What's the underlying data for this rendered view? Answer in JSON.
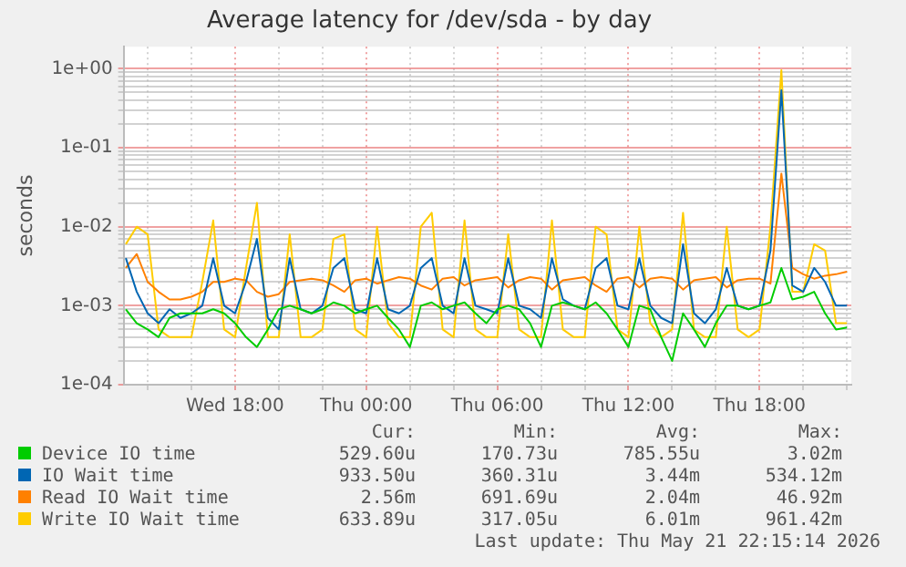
{
  "chart_data": {
    "type": "line",
    "title": "Average latency for /dev/sda - by day",
    "ylabel": "seconds",
    "x": [
      "2026-05-20T13:00",
      "2026-05-20T13:30",
      "2026-05-20T14:00",
      "2026-05-20T14:30",
      "2026-05-20T15:00",
      "2026-05-20T15:30",
      "2026-05-20T16:00",
      "2026-05-20T16:30",
      "2026-05-20T17:00",
      "2026-05-20T17:30",
      "2026-05-20T18:00",
      "2026-05-20T18:30",
      "2026-05-20T19:00",
      "2026-05-20T19:30",
      "2026-05-20T20:00",
      "2026-05-20T20:30",
      "2026-05-20T21:00",
      "2026-05-20T21:30",
      "2026-05-20T22:00",
      "2026-05-20T22:30",
      "2026-05-20T23:00",
      "2026-05-20T23:30",
      "2026-05-21T00:00",
      "2026-05-21T00:30",
      "2026-05-21T01:00",
      "2026-05-21T01:30",
      "2026-05-21T02:00",
      "2026-05-21T02:30",
      "2026-05-21T03:00",
      "2026-05-21T03:30",
      "2026-05-21T04:00",
      "2026-05-21T04:30",
      "2026-05-21T05:00",
      "2026-05-21T05:30",
      "2026-05-21T06:00",
      "2026-05-21T06:30",
      "2026-05-21T07:00",
      "2026-05-21T07:30",
      "2026-05-21T08:00",
      "2026-05-21T08:30",
      "2026-05-21T09:00",
      "2026-05-21T09:30",
      "2026-05-21T10:00",
      "2026-05-21T10:30",
      "2026-05-21T11:00",
      "2026-05-21T11:30",
      "2026-05-21T12:00",
      "2026-05-21T12:30",
      "2026-05-21T13:00",
      "2026-05-21T13:30",
      "2026-05-21T14:00",
      "2026-05-21T14:30",
      "2026-05-21T15:00",
      "2026-05-21T15:30",
      "2026-05-21T16:00",
      "2026-05-21T16:30",
      "2026-05-21T17:00",
      "2026-05-21T17:30",
      "2026-05-21T18:00",
      "2026-05-21T18:30",
      "2026-05-21T19:00",
      "2026-05-21T19:30",
      "2026-05-21T20:00",
      "2026-05-21T20:30",
      "2026-05-21T21:00",
      "2026-05-21T21:30",
      "2026-05-21T22:00"
    ],
    "xlim": [
      "2026-05-20T12:54",
      "2026-05-21T22:12"
    ],
    "xticks": [
      {
        "value": "2026-05-20T14:00",
        "label": null
      },
      {
        "value": "2026-05-20T16:00",
        "label": null
      },
      {
        "value": "2026-05-20T18:00",
        "label": "Wed 18:00"
      },
      {
        "value": "2026-05-20T20:00",
        "label": null
      },
      {
        "value": "2026-05-20T22:00",
        "label": null
      },
      {
        "value": "2026-05-21T00:00",
        "label": "Thu 00:00"
      },
      {
        "value": "2026-05-21T02:00",
        "label": null
      },
      {
        "value": "2026-05-21T04:00",
        "label": null
      },
      {
        "value": "2026-05-21T06:00",
        "label": "Thu 06:00"
      },
      {
        "value": "2026-05-21T08:00",
        "label": null
      },
      {
        "value": "2026-05-21T10:00",
        "label": null
      },
      {
        "value": "2026-05-21T12:00",
        "label": "Thu 12:00"
      },
      {
        "value": "2026-05-21T14:00",
        "label": null
      },
      {
        "value": "2026-05-21T16:00",
        "label": null
      },
      {
        "value": "2026-05-21T18:00",
        "label": "Thu 18:00"
      },
      {
        "value": "2026-05-21T20:00",
        "label": null
      },
      {
        "value": "2026-05-21T22:00",
        "label": null
      }
    ],
    "log": "y",
    "ylim": [
      0.0001,
      1.9
    ],
    "yticks": [
      {
        "value": 0.0001,
        "label": "1e-04"
      },
      {
        "value": 0.0002,
        "label": null
      },
      {
        "value": 0.0003,
        "label": null
      },
      {
        "value": 0.0004,
        "label": null
      },
      {
        "value": 0.0005,
        "label": null
      },
      {
        "value": 0.0006,
        "label": null
      },
      {
        "value": 0.0007,
        "label": null
      },
      {
        "value": 0.0008,
        "label": null
      },
      {
        "value": 0.0009,
        "label": null
      },
      {
        "value": 0.001,
        "label": "1e-03"
      },
      {
        "value": 0.002,
        "label": null
      },
      {
        "value": 0.003,
        "label": null
      },
      {
        "value": 0.004,
        "label": null
      },
      {
        "value": 0.005,
        "label": null
      },
      {
        "value": 0.006,
        "label": null
      },
      {
        "value": 0.007,
        "label": null
      },
      {
        "value": 0.008,
        "label": null
      },
      {
        "value": 0.009,
        "label": null
      },
      {
        "value": 0.01,
        "label": "1e-02"
      },
      {
        "value": 0.02,
        "label": null
      },
      {
        "value": 0.03,
        "label": null
      },
      {
        "value": 0.04,
        "label": null
      },
      {
        "value": 0.05,
        "label": null
      },
      {
        "value": 0.06,
        "label": null
      },
      {
        "value": 0.07,
        "label": null
      },
      {
        "value": 0.08,
        "label": null
      },
      {
        "value": 0.09,
        "label": null
      },
      {
        "value": 0.1,
        "label": "1e-01"
      },
      {
        "value": 0.2,
        "label": null
      },
      {
        "value": 0.3,
        "label": null
      },
      {
        "value": 0.4,
        "label": null
      },
      {
        "value": 0.5,
        "label": null
      },
      {
        "value": 0.6,
        "label": null
      },
      {
        "value": 0.7,
        "label": null
      },
      {
        "value": 0.8,
        "label": null
      },
      {
        "value": 0.9,
        "label": null
      },
      {
        "value": 1,
        "label": "1e+00"
      }
    ],
    "grid": true,
    "legend": "bottom",
    "marker": "none",
    "line_style": "solid",
    "series": [
      {
        "name": "Device IO time",
        "color": "#00cc00",
        "values": [
          0.0009,
          0.0006,
          0.0005,
          0.0004,
          0.0007,
          0.0008,
          0.0008,
          0.0008,
          0.0009,
          0.0008,
          0.0006,
          0.0004,
          0.0003,
          0.0005,
          0.0009,
          0.001,
          0.0009,
          0.0008,
          0.0009,
          0.0011,
          0.001,
          0.0008,
          0.0009,
          0.001,
          0.0007,
          0.0005,
          0.0003,
          0.001,
          0.0011,
          0.0009,
          0.001,
          0.0011,
          0.0008,
          0.0006,
          0.0009,
          0.001,
          0.0009,
          0.0006,
          0.0003,
          0.001,
          0.0011,
          0.001,
          0.0009,
          0.0011,
          0.0008,
          0.0005,
          0.0003,
          0.001,
          0.0009,
          0.0004,
          0.0002,
          0.0008,
          0.0005,
          0.0003,
          0.0006,
          0.001,
          0.001,
          0.0009,
          0.001,
          0.0011,
          0.003,
          0.0012,
          0.0013,
          0.0015,
          0.0008,
          0.0005,
          0.00053
        ]
      },
      {
        "name": "IO Wait time",
        "color": "#0066b3",
        "values": [
          0.004,
          0.0015,
          0.0008,
          0.0006,
          0.0009,
          0.0007,
          0.0008,
          0.001,
          0.004,
          0.001,
          0.0008,
          0.002,
          0.007,
          0.0007,
          0.0005,
          0.004,
          0.0009,
          0.0008,
          0.001,
          0.003,
          0.004,
          0.0009,
          0.0008,
          0.004,
          0.0009,
          0.0008,
          0.001,
          0.003,
          0.004,
          0.001,
          0.0008,
          0.004,
          0.001,
          0.0009,
          0.0008,
          0.004,
          0.001,
          0.0009,
          0.0007,
          0.004,
          0.0012,
          0.001,
          0.0009,
          0.003,
          0.004,
          0.001,
          0.0009,
          0.004,
          0.001,
          0.0007,
          0.0006,
          0.006,
          0.0008,
          0.0006,
          0.0009,
          0.003,
          0.001,
          0.0009,
          0.001,
          0.005,
          0.534,
          0.0018,
          0.0015,
          0.003,
          0.002,
          0.001,
          0.001
        ]
      },
      {
        "name": "Read IO Wait time",
        "color": "#ff8000",
        "values": [
          0.003,
          0.0045,
          0.002,
          0.0015,
          0.0012,
          0.0012,
          0.0013,
          0.0015,
          0.002,
          0.002,
          0.0022,
          0.0021,
          0.0015,
          0.0013,
          0.0014,
          0.002,
          0.0021,
          0.0022,
          0.0021,
          0.0018,
          0.0015,
          0.0021,
          0.0022,
          0.0019,
          0.0021,
          0.0023,
          0.0022,
          0.0018,
          0.0016,
          0.0022,
          0.0023,
          0.0018,
          0.0021,
          0.0022,
          0.0023,
          0.0017,
          0.0021,
          0.0023,
          0.0022,
          0.0016,
          0.0021,
          0.0022,
          0.0023,
          0.0018,
          0.0015,
          0.0022,
          0.0023,
          0.0017,
          0.0022,
          0.0023,
          0.0022,
          0.0016,
          0.0021,
          0.0022,
          0.0023,
          0.0017,
          0.0021,
          0.0022,
          0.0022,
          0.0019,
          0.047,
          0.003,
          0.0025,
          0.0022,
          0.0024,
          0.0025,
          0.0027
        ]
      },
      {
        "name": "Write IO Wait time",
        "color": "#ffcc00",
        "values": [
          0.006,
          0.01,
          0.008,
          0.0005,
          0.0004,
          0.0004,
          0.0004,
          0.002,
          0.012,
          0.0005,
          0.0004,
          0.003,
          0.02,
          0.0004,
          0.0004,
          0.008,
          0.0004,
          0.0004,
          0.0005,
          0.007,
          0.008,
          0.0005,
          0.0004,
          0.01,
          0.0006,
          0.0004,
          0.0004,
          0.01,
          0.015,
          0.0005,
          0.0004,
          0.012,
          0.0005,
          0.0004,
          0.0004,
          0.008,
          0.0005,
          0.0004,
          0.0004,
          0.012,
          0.0005,
          0.0004,
          0.0004,
          0.01,
          0.008,
          0.0005,
          0.0004,
          0.01,
          0.0006,
          0.0004,
          0.0005,
          0.015,
          0.0005,
          0.0004,
          0.0004,
          0.01,
          0.0005,
          0.0004,
          0.0005,
          0.01,
          0.96,
          0.0015,
          0.0015,
          0.006,
          0.005,
          0.0006,
          0.0006
        ]
      }
    ],
    "annotations": [
      "Cur:",
      "Min:",
      "Avg:",
      "Max:",
      "529.60u",
      "170.73u",
      "785.55u",
      "3.02m",
      "933.50u",
      "360.31u",
      "3.44m",
      "534.12m",
      "2.56m",
      "691.69u",
      "2.04m",
      "46.92m",
      "633.89u",
      "317.05u",
      "6.01m",
      "961.42m",
      "Last update: Thu May 21 22:15:14 2026"
    ]
  }
}
